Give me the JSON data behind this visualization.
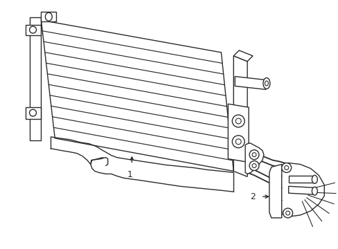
{
  "bg_color": "#ffffff",
  "line_color": "#2a2a2a",
  "lw": 1.0,
  "label1_text": "1",
  "label2_text": "2",
  "figsize": [
    4.89,
    3.6
  ],
  "dpi": 100
}
